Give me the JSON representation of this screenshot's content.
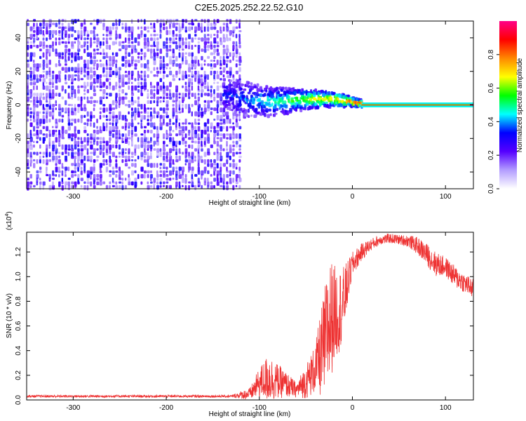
{
  "title": "C2E5.2025.252.22.52.G10",
  "chart_data": [
    {
      "type": "heatmap",
      "name": "spectrogram",
      "xlabel": "Height of straight line (km)",
      "ylabel": "Frequency (Hz)",
      "xlim": [
        -350,
        130
      ],
      "ylim": [
        -50,
        50
      ],
      "xticks": [
        -300,
        -200,
        -100,
        0,
        100
      ],
      "yticks": [
        -40,
        -20,
        0,
        20,
        40
      ],
      "xtick_labels": [
        "-300",
        "-200",
        "-100",
        "0",
        "100"
      ],
      "ytick_labels": [
        "-40",
        "-20",
        "0",
        "20",
        "40"
      ],
      "noise_region_x": [
        -350,
        -120
      ],
      "signal_band_x": [
        -140,
        10
      ],
      "carrier_line": {
        "x": [
          10,
          130
        ],
        "frequency": 0
      },
      "colorbar": {
        "label": "Normalized spectral amplitude",
        "range": [
          0.0,
          1.0
        ],
        "ticks": [
          0.0,
          0.2,
          0.4,
          0.6,
          0.8
        ],
        "tick_labels": [
          "0.0",
          "0.2",
          "0.4",
          "0.6",
          "0.8"
        ],
        "colors": [
          "#ffffff",
          "#b39dff",
          "#5500ff",
          "#0000ff",
          "#00ffff",
          "#00ff00",
          "#ffff00",
          "#ff8800",
          "#ff0000",
          "#ff0088"
        ]
      }
    },
    {
      "type": "line",
      "name": "snr",
      "xlabel": "Height of straight line (km)",
      "ylabel": "SNR (10 * v/v)",
      "scale_label": "(x10",
      "scale_exp": "4",
      "scale_close": ")",
      "xlim": [
        -350,
        130
      ],
      "ylim": [
        0,
        1.36
      ],
      "xticks": [
        -300,
        -200,
        -100,
        0,
        100
      ],
      "yticks": [
        0.0,
        0.2,
        0.4,
        0.6,
        0.8,
        1.0,
        1.2
      ],
      "xtick_labels": [
        "-300",
        "-200",
        "-100",
        "0",
        "100"
      ],
      "ytick_labels": [
        "0.0",
        "0.2",
        "0.4",
        "0.6",
        "0.8",
        "1.0",
        "1.2"
      ],
      "color": "#ee3333",
      "envelope": {
        "x": [
          -350,
          -130,
          -110,
          -100,
          -90,
          -80,
          -70,
          -60,
          -50,
          -40,
          -30,
          -25,
          -20,
          -15,
          -10,
          -5,
          0,
          10,
          20,
          30,
          40,
          50,
          60,
          70,
          80,
          90,
          100,
          110,
          120,
          130
        ],
        "mean": [
          0.03,
          0.03,
          0.05,
          0.14,
          0.18,
          0.15,
          0.12,
          0.08,
          0.15,
          0.25,
          0.45,
          0.62,
          0.7,
          0.72,
          0.78,
          0.95,
          1.1,
          1.2,
          1.26,
          1.3,
          1.31,
          1.3,
          1.29,
          1.25,
          1.18,
          1.1,
          1.08,
          1.0,
          0.95,
          0.9
        ],
        "spread": [
          0.01,
          0.01,
          0.05,
          0.12,
          0.2,
          0.14,
          0.1,
          0.06,
          0.14,
          0.2,
          0.45,
          0.55,
          0.4,
          0.35,
          0.3,
          0.18,
          0.1,
          0.07,
          0.05,
          0.04,
          0.04,
          0.04,
          0.05,
          0.07,
          0.09,
          0.1,
          0.08,
          0.09,
          0.08,
          0.08
        ]
      }
    }
  ]
}
